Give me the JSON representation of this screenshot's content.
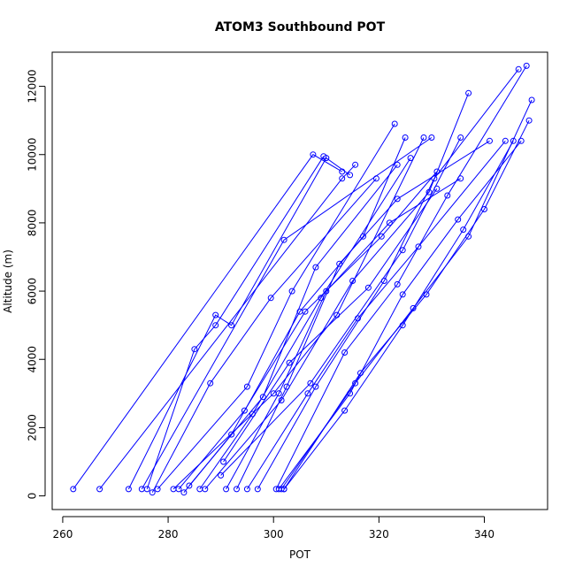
{
  "chart_data": {
    "type": "line",
    "title": "ATOM3 Southbound POT",
    "xlabel": "POT",
    "ylabel": "Altitude (m)",
    "xlim": [
      258,
      352
    ],
    "ylim": [
      -400,
      13000
    ],
    "x_ticks": [
      260,
      280,
      300,
      320,
      340
    ],
    "y_ticks": [
      0,
      2000,
      4000,
      6000,
      8000,
      10000,
      12000
    ],
    "grid": false,
    "legend": "none",
    "marker": "open-circle",
    "color": "#0000ff",
    "series": [
      {
        "points": [
          [
            262,
            200
          ],
          [
            307.5,
            10000
          ],
          [
            313,
            9500
          ]
        ]
      },
      {
        "points": [
          [
            267,
            200
          ],
          [
            313,
            9300
          ],
          [
            315.5,
            9700
          ]
        ]
      },
      {
        "points": [
          [
            272.5,
            200
          ],
          [
            289,
            5300
          ],
          [
            292,
            5000
          ],
          [
            310,
            9900
          ],
          [
            314.5,
            9400
          ]
        ]
      },
      {
        "points": [
          [
            275,
            200
          ],
          [
            302,
            7500
          ],
          [
            330,
            10500
          ]
        ]
      },
      {
        "points": [
          [
            276,
            200
          ],
          [
            285,
            4300
          ],
          [
            289,
            5000
          ],
          [
            309.5,
            9950
          ]
        ]
      },
      {
        "points": [
          [
            277,
            100
          ],
          [
            288,
            3300
          ],
          [
            299.5,
            5800
          ],
          [
            319.5,
            9300
          ]
        ]
      },
      {
        "points": [
          [
            278,
            200
          ],
          [
            295,
            3200
          ],
          [
            303.5,
            6000
          ],
          [
            323,
            10900
          ]
        ]
      },
      {
        "points": [
          [
            281,
            200
          ],
          [
            300,
            3000
          ],
          [
            312,
            5300
          ],
          [
            328.5,
            10500
          ]
        ]
      },
      {
        "points": [
          [
            283,
            100
          ],
          [
            292,
            1800
          ],
          [
            305,
            5400
          ],
          [
            317,
            7600
          ],
          [
            325,
            10500
          ]
        ]
      },
      {
        "points": [
          [
            284,
            300
          ],
          [
            298,
            2900
          ],
          [
            308,
            6700
          ],
          [
            323.5,
            9700
          ]
        ]
      },
      {
        "points": [
          [
            282,
            200
          ],
          [
            294.5,
            2500
          ],
          [
            306,
            5400
          ],
          [
            320.5,
            7600
          ],
          [
            331,
            9500
          ]
        ]
      },
      {
        "points": [
          [
            286,
            200
          ],
          [
            296,
            2400
          ],
          [
            309,
            5800
          ],
          [
            326,
            9900
          ]
        ]
      },
      {
        "points": [
          [
            287,
            200
          ],
          [
            301.5,
            2800
          ],
          [
            315,
            6300
          ],
          [
            329.5,
            8900
          ],
          [
            337,
            11800
          ]
        ]
      },
      {
        "points": [
          [
            291,
            200
          ],
          [
            301,
            3000
          ],
          [
            310,
            6000
          ],
          [
            322,
            8000
          ],
          [
            335.5,
            9300
          ]
        ]
      },
      {
        "points": [
          [
            293,
            200
          ],
          [
            302.5,
            3200
          ],
          [
            312.5,
            6800
          ],
          [
            323.5,
            8700
          ],
          [
            341,
            10400
          ]
        ]
      },
      {
        "points": [
          [
            295,
            200
          ],
          [
            306.5,
            3000
          ],
          [
            316,
            5200
          ],
          [
            327.5,
            7300
          ],
          [
            344,
            10400
          ]
        ]
      },
      {
        "points": [
          [
            297,
            200
          ],
          [
            308,
            3200
          ],
          [
            321,
            6300
          ],
          [
            330.5,
            9300
          ],
          [
            346.5,
            12500
          ]
        ]
      },
      {
        "points": [
          [
            300.5,
            200
          ],
          [
            313.5,
            4200
          ],
          [
            323.5,
            6200
          ],
          [
            333,
            8800
          ],
          [
            348,
            12600
          ]
        ]
      },
      {
        "points": [
          [
            301,
            200
          ],
          [
            314.5,
            3000
          ],
          [
            324.5,
            5900
          ],
          [
            335,
            8100
          ],
          [
            347,
            10400
          ]
        ]
      },
      {
        "points": [
          [
            301.5,
            200
          ],
          [
            315.5,
            3300
          ],
          [
            326.5,
            5500
          ],
          [
            337,
            7600
          ],
          [
            349,
            11600
          ]
        ]
      },
      {
        "points": [
          [
            302,
            200
          ],
          [
            316.5,
            3600
          ],
          [
            329,
            5900
          ],
          [
            340,
            8400
          ],
          [
            348.5,
            11000
          ]
        ]
      },
      {
        "points": [
          [
            302,
            200
          ],
          [
            313.5,
            2500
          ],
          [
            324.5,
            5000
          ],
          [
            336,
            7800
          ],
          [
            345.5,
            10400
          ]
        ]
      },
      {
        "points": [
          [
            290,
            600
          ],
          [
            307,
            3300
          ],
          [
            324.5,
            7200
          ],
          [
            335.5,
            10500
          ]
        ]
      },
      {
        "points": [
          [
            290.5,
            1000
          ],
          [
            303,
            3900
          ],
          [
            318,
            6100
          ],
          [
            331,
            9000
          ]
        ]
      }
    ]
  }
}
